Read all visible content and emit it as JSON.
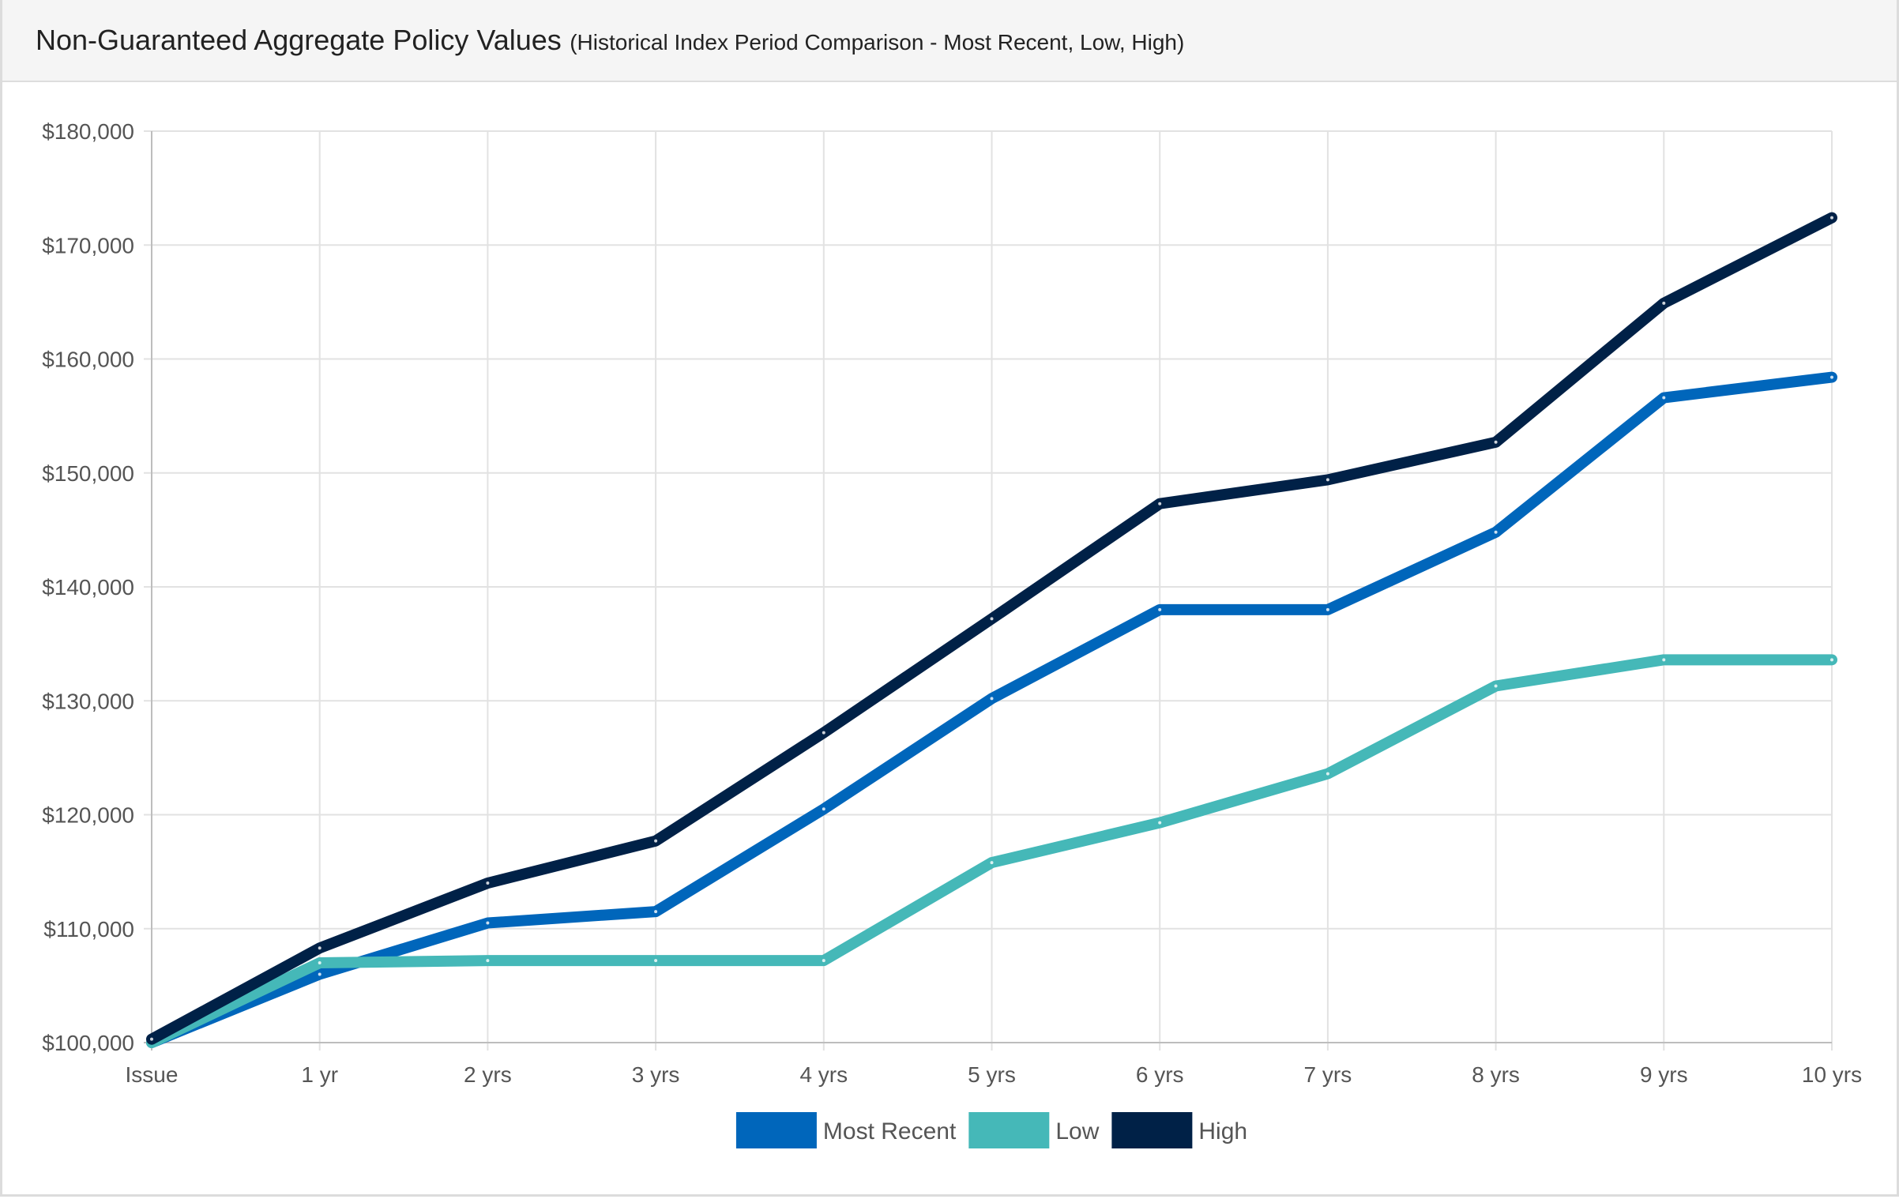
{
  "header": {
    "title": "Non-Guaranteed Aggregate Policy Values",
    "subtitle": "(Historical Index Period Comparison - Most Recent, Low, High)"
  },
  "chart_data": {
    "type": "line",
    "title": "Non-Guaranteed Aggregate Policy Values",
    "subtitle": "(Historical Index Period Comparison - Most Recent, Low, High)",
    "xlabel": "",
    "ylabel": "",
    "categories": [
      "Issue",
      "1 yr",
      "2 yrs",
      "3 yrs",
      "4 yrs",
      "5 yrs",
      "6 yrs",
      "7 yrs",
      "8 yrs",
      "9 yrs",
      "10 yrs"
    ],
    "ylim": [
      100000,
      180000
    ],
    "yticks": [
      100000,
      110000,
      120000,
      130000,
      140000,
      150000,
      160000,
      170000,
      180000
    ],
    "ytick_labels": [
      "$100,000",
      "$110,000",
      "$120,000",
      "$130,000",
      "$140,000",
      "$150,000",
      "$160,000",
      "$170,000",
      "$180,000"
    ],
    "grid": true,
    "legend_position": "bottom",
    "series": [
      {
        "name": "Most Recent",
        "color": "#0066bb",
        "values": [
          100000,
          106000,
          110500,
          111500,
          120500,
          130200,
          138000,
          138000,
          144800,
          156600,
          158400
        ]
      },
      {
        "name": "Low",
        "color": "#45b8b8",
        "values": [
          100000,
          107000,
          107200,
          107200,
          107200,
          115800,
          119300,
          123600,
          131300,
          133600,
          133600
        ]
      },
      {
        "name": "High",
        "color": "#002147",
        "values": [
          100300,
          108300,
          114000,
          117700,
          127200,
          137200,
          147300,
          149400,
          152700,
          164900,
          172400
        ]
      }
    ]
  }
}
